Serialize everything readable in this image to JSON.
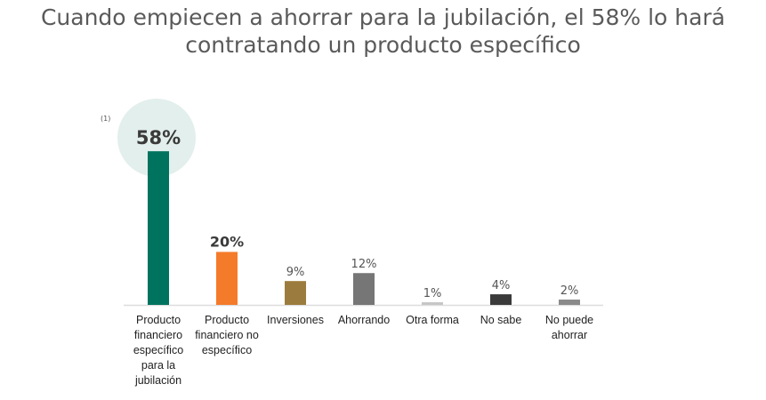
{
  "title_line1": "Cuando empiecen a ahorrar para la jubilación, el 58% lo hará",
  "title_line2": "contratando un producto específico",
  "note": "(1)",
  "chart_data": {
    "type": "bar",
    "categories": [
      "Producto financiero específico para la jubilación",
      "Producto financiero no específico",
      "Inversiones",
      "Ahorrando",
      "Otra forma",
      "No sabe",
      "No puede ahorrar"
    ],
    "values": [
      58,
      20,
      9,
      12,
      1,
      4,
      2
    ],
    "labels": [
      "58%",
      "20%",
      "9%",
      "12%",
      "1%",
      "4%",
      "2%"
    ],
    "colors": [
      "#00735e",
      "#f47b2a",
      "#9c7c3e",
      "#767676",
      "#c6c6c6",
      "#3a3a3a",
      "#8a8a8a"
    ],
    "highlight_color": "#e2efec",
    "ylim": [
      0,
      60
    ],
    "grid": false
  }
}
